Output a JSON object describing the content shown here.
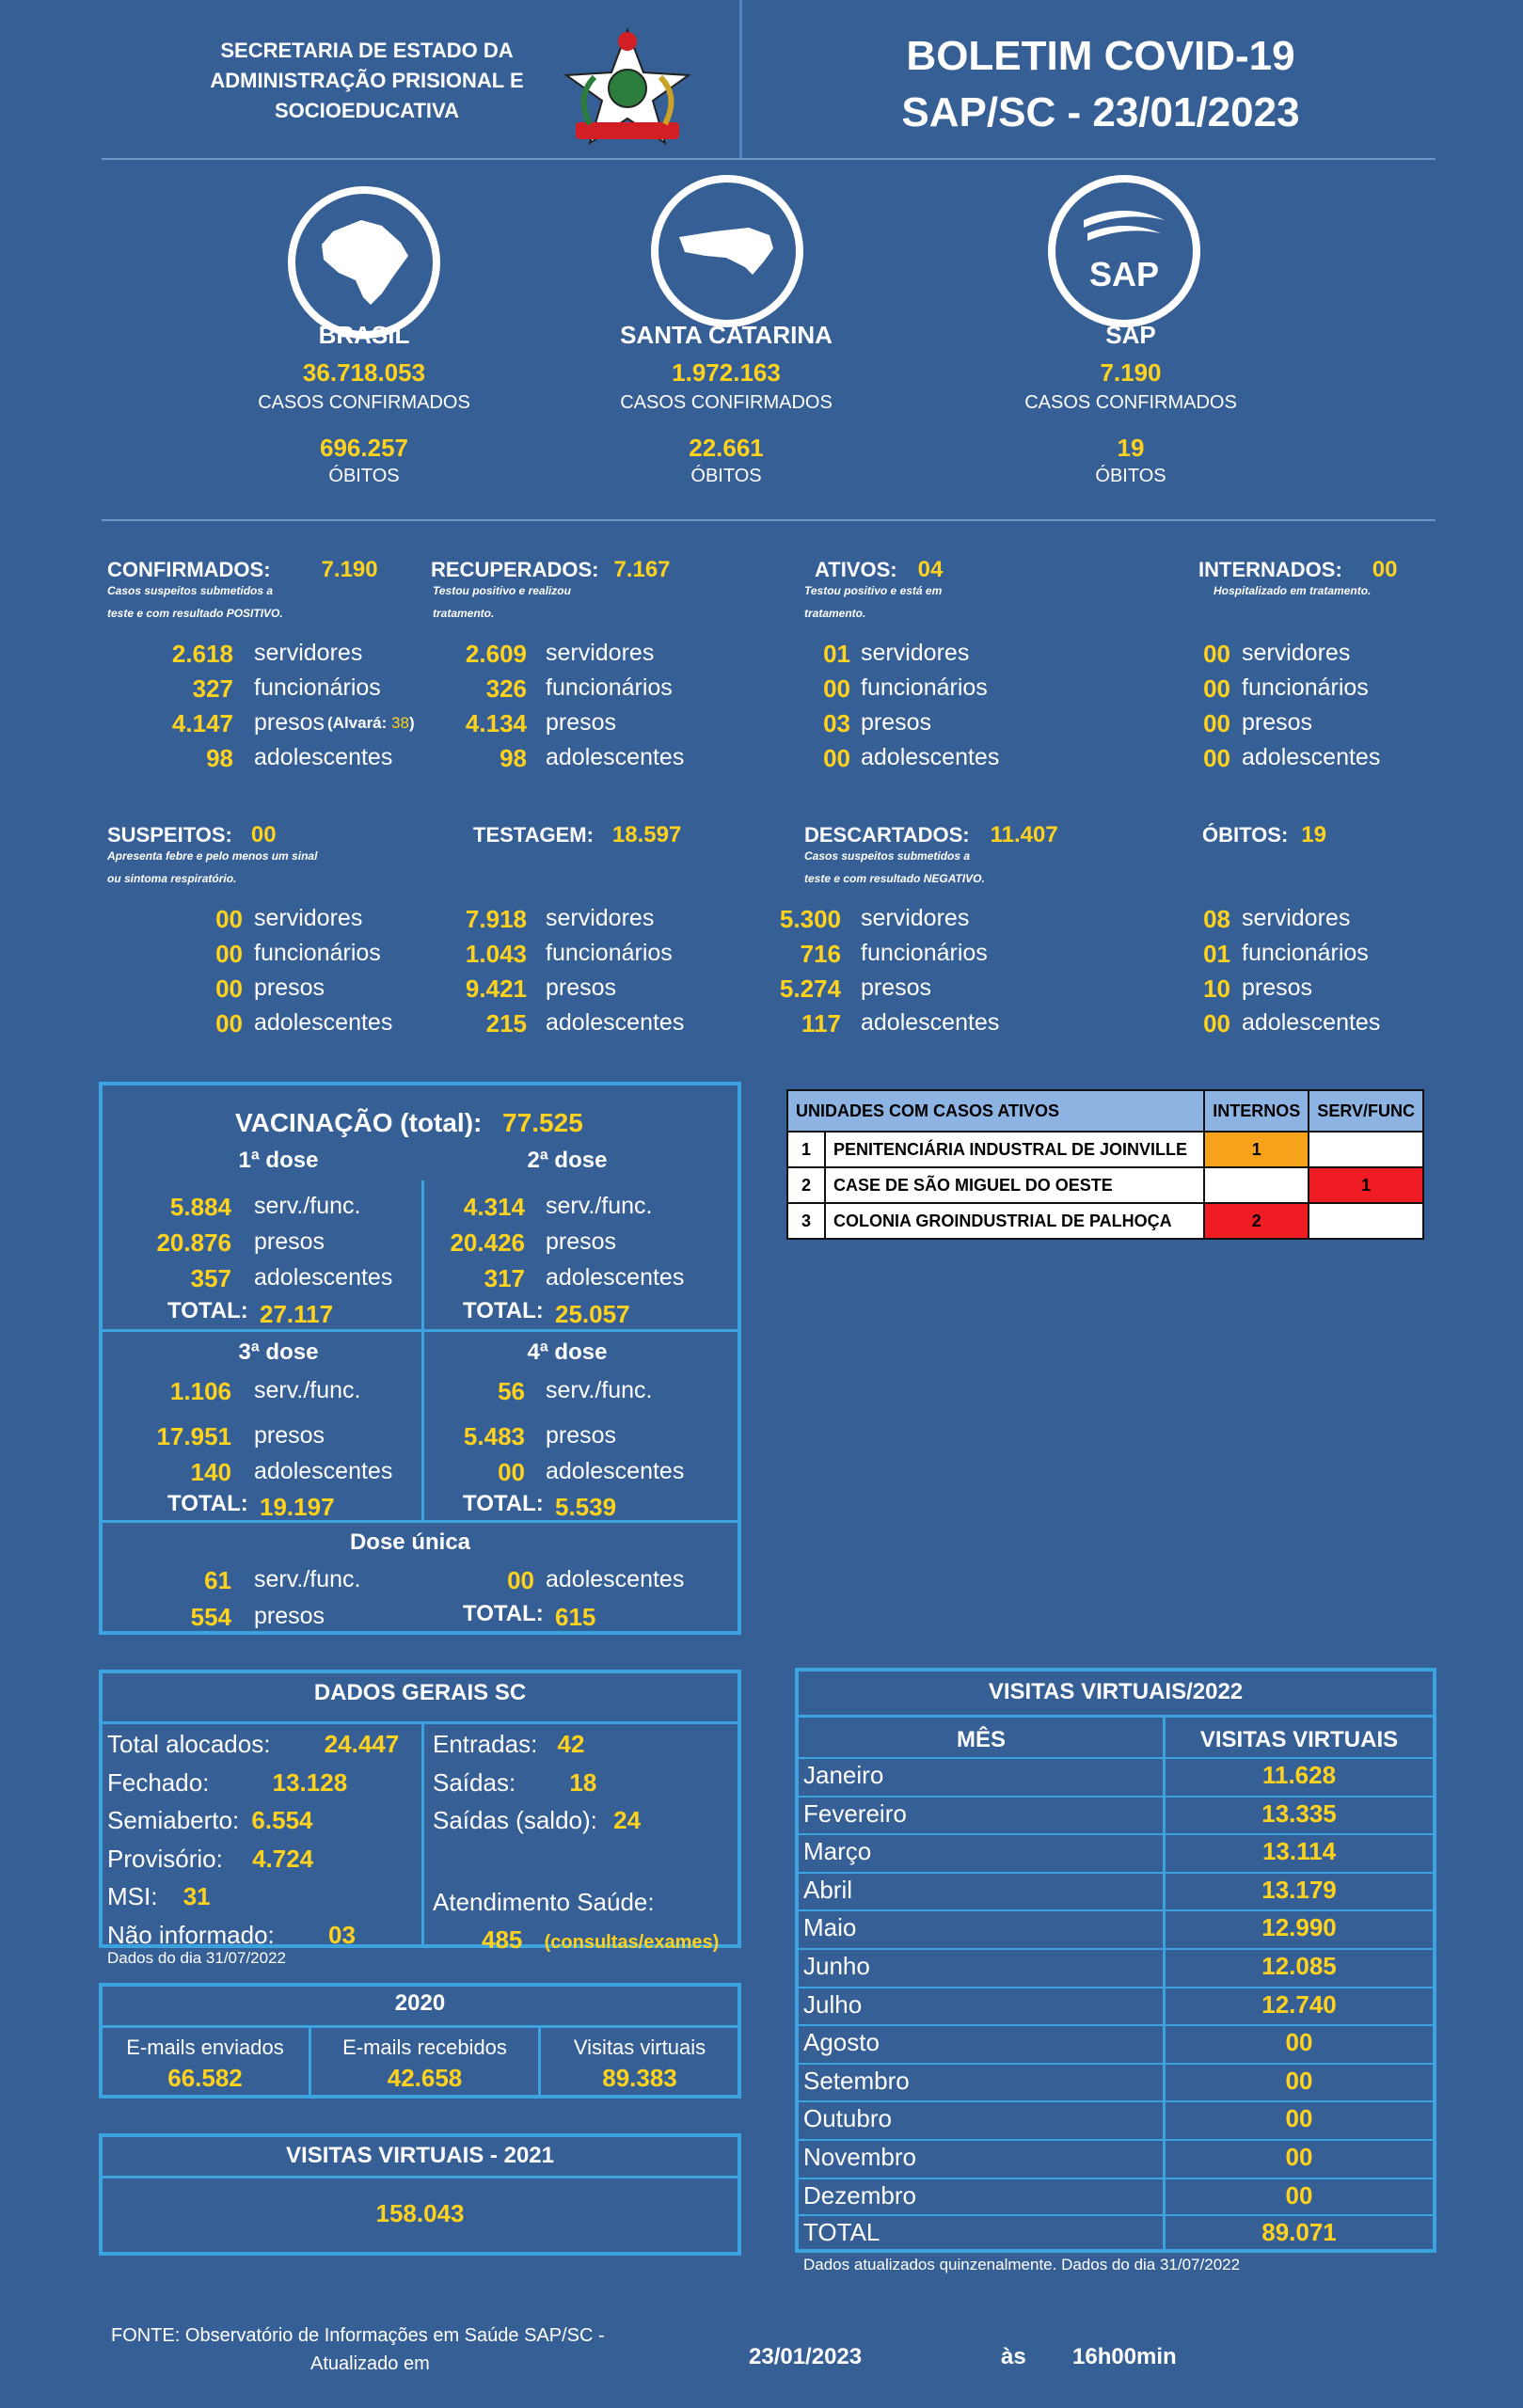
{
  "header": {
    "org_line1": "SECRETARIA DE ESTADO DA",
    "org_line2": "ADMINISTRAÇÃO PRISIONAL E",
    "org_line3": "SOCIOEDUCATIVA",
    "title_line1": "BOLETIM COVID-19",
    "title_line2": "SAP/SC -  23/01/2023"
  },
  "regions": [
    {
      "name": "BRASIL",
      "cases": "36.718.053",
      "cases_label": "CASOS CONFIRMADOS",
      "deaths": "696.257",
      "deaths_label": "ÓBITOS",
      "icon": "brazil-map-icon"
    },
    {
      "name": "SANTA CATARINA",
      "cases": "1.972.163",
      "cases_label": "CASOS CONFIRMADOS",
      "deaths": "22.661",
      "deaths_label": "ÓBITOS",
      "icon": "santa-catarina-map-icon"
    },
    {
      "name": "SAP",
      "cases": "7.190",
      "cases_label": "CASOS CONFIRMADOS",
      "deaths": "19",
      "deaths_label": "ÓBITOS",
      "icon": "sap-logo-icon"
    }
  ],
  "stats_row1": [
    {
      "label": "CONFIRMADOS:",
      "total": "7.190",
      "note1": "Casos suspeitos submetidos a",
      "note2": " teste e com resultado POSITIVO.",
      "servidores": "2.618",
      "funcionarios": "327",
      "presos": "4.147",
      "adolescentes": "98",
      "alvara_label": "(Alvará: ",
      "alvara_value": "38",
      "alvara_close": ")"
    },
    {
      "label": "RECUPERADOS:",
      "total": "7.167",
      "note1": "Testou positivo e realizou",
      "note2": "tratamento.",
      "servidores": "2.609",
      "funcionarios": "326",
      "presos": "4.134",
      "adolescentes": "98"
    },
    {
      "label": "ATIVOS:",
      "total": "04",
      "note1": "Testou positivo e está em",
      "note2": "tratamento.",
      "servidores": "01",
      "funcionarios": "00",
      "presos": "03",
      "adolescentes": "00"
    },
    {
      "label": "INTERNADOS:",
      "total": "00",
      "note1": "Hospitalizado em tratamento.",
      "note2": "",
      "servidores": "00",
      "funcionarios": "00",
      "presos": "00",
      "adolescentes": "00"
    }
  ],
  "stats_row2": [
    {
      "label": "SUSPEITOS:",
      "total": "00",
      "note1": "Apresenta febre e pelo menos um sinal",
      "note2": "ou sintoma respiratório.",
      "servidores": "00",
      "funcionarios": "00",
      "presos": "00",
      "adolescentes": "00"
    },
    {
      "label": "TESTAGEM:",
      "total": "18.597",
      "note1": "",
      "note2": "",
      "servidores": "7.918",
      "funcionarios": "1.043",
      "presos": "9.421",
      "adolescentes": "215"
    },
    {
      "label": "DESCARTADOS:",
      "total": "11.407",
      "note1": "Casos suspeitos submetidos a",
      "note2": "teste e com resultado NEGATIVO.",
      "servidores": "5.300",
      "funcionarios": "716",
      "presos": "5.274",
      "adolescentes": "117"
    },
    {
      "label": "ÓBITOS:",
      "total": "19",
      "note1": "",
      "note2": "",
      "servidores": "08",
      "funcionarios": "01",
      "presos": "10",
      "adolescentes": "00"
    }
  ],
  "category_labels": {
    "servidores": "servidores",
    "funcionarios": "funcionários",
    "presos": "presos",
    "adolescentes": "adolescentes"
  },
  "vaccination": {
    "title": "VACINAÇÃO (total):",
    "total": "77.525",
    "total_label": "TOTAL:",
    "serv_label": "serv./func.",
    "presos_label": "presos",
    "adol_label": "adolescentes",
    "dose1": {
      "title": "1ª dose",
      "serv": "5.884",
      "presos": "20.876",
      "adol": "357",
      "total": "27.117"
    },
    "dose2": {
      "title": "2ª dose",
      "serv": "4.314",
      "presos": "20.426",
      "adol": "317",
      "total": "25.057"
    },
    "dose3": {
      "title": "3ª dose",
      "serv": "1.106",
      "presos": "17.951",
      "adol": "140",
      "total": "19.197"
    },
    "dose4": {
      "title": "4ª dose",
      "serv": "56",
      "presos": "5.483",
      "adol": "00",
      "total": "5.539"
    },
    "single": {
      "title": "Dose única",
      "serv": "61",
      "presos": "554",
      "adol": "00",
      "total": "615"
    }
  },
  "units_table": {
    "headers": [
      "UNIDADES COM CASOS ATIVOS",
      "INTERNOS",
      "SERV/FUNC"
    ],
    "rows": [
      {
        "n": "1",
        "name": "PENITENCIÁRIA INDUSTRAL DE JOINVILLE",
        "internos": "1",
        "serv": "",
        "internos_color": "#f7a21b",
        "serv_color": "#ffffff"
      },
      {
        "n": "2",
        "name": "CASE DE SÃO MIGUEL DO OESTE",
        "internos": "",
        "serv": "1",
        "internos_color": "#ffffff",
        "serv_color": "#ef1c24"
      },
      {
        "n": "3",
        "name": "COLONIA GROINDUSTRIAL DE PALHOÇA",
        "internos": "2",
        "serv": "",
        "internos_color": "#ef1c24",
        "serv_color": "#ffffff"
      }
    ]
  },
  "general": {
    "title": "DADOS GERAIS SC",
    "total_label": "Total alocados:",
    "total": "24.447",
    "fechado_label": "Fechado:",
    "fechado": "13.128",
    "semi_label": "Semiaberto:",
    "semi": "6.554",
    "prov_label": "Provisório:",
    "prov": "4.724",
    "msi_label": "MSI:",
    "msi": "31",
    "ni_label": "Não informado:",
    "ni": "03",
    "entradas_label": "Entradas:",
    "entradas": "42",
    "saidas_label": "Saídas:",
    "saidas": "18",
    "saldo_label": "Saídas (saldo):",
    "saldo": "24",
    "saude_label": "Atendimento Saúde:",
    "saude": "485",
    "saude_note": "(consultas/exames)",
    "footnote": "Dados do dia 31/07/2022"
  },
  "year2020": {
    "title": "2020",
    "emails_sent_label": "E-mails enviados",
    "emails_sent": "66.582",
    "emails_recv_label": "E-mails recebidos",
    "emails_recv": "42.658",
    "visits_label": "Visitas virtuais",
    "visits": "89.383"
  },
  "visits2021": {
    "title": "VISITAS VIRTUAIS - 2021",
    "value": "158.043"
  },
  "visits2022": {
    "title": "VISITAS VIRTUAIS/2022",
    "col_month": "MÊS",
    "col_visits": "VISITAS VIRTUAIS",
    "rows": [
      {
        "month": "Janeiro",
        "value": "11.628"
      },
      {
        "month": "Fevereiro",
        "value": "13.335"
      },
      {
        "month": "Março",
        "value": "13.114"
      },
      {
        "month": "Abril",
        "value": "13.179"
      },
      {
        "month": "Maio",
        "value": "12.990"
      },
      {
        "month": "Junho",
        "value": "12.085"
      },
      {
        "month": "Julho",
        "value": "12.740"
      },
      {
        "month": "Agosto",
        "value": "00"
      },
      {
        "month": "Setembro",
        "value": "00"
      },
      {
        "month": "Outubro",
        "value": "00"
      },
      {
        "month": "Novembro",
        "value": "00"
      },
      {
        "month": "Dezembro",
        "value": "00"
      }
    ],
    "total_label": "TOTAL",
    "total": "89.071",
    "footnote": "Dados atualizados quinzenalmente. Dados do dia 31/07/2022"
  },
  "footer": {
    "source_line1": "FONTE: Observatório de Informações em Saúde SAP/SC  -",
    "source_line2": "Atualizado em",
    "date": "23/01/2023",
    "as": "às",
    "time": "16h00min"
  },
  "colors": {
    "background": "#365f95",
    "accent": "#ffd21e",
    "border": "#3aa3e0",
    "table_header": "#8db3e2"
  }
}
